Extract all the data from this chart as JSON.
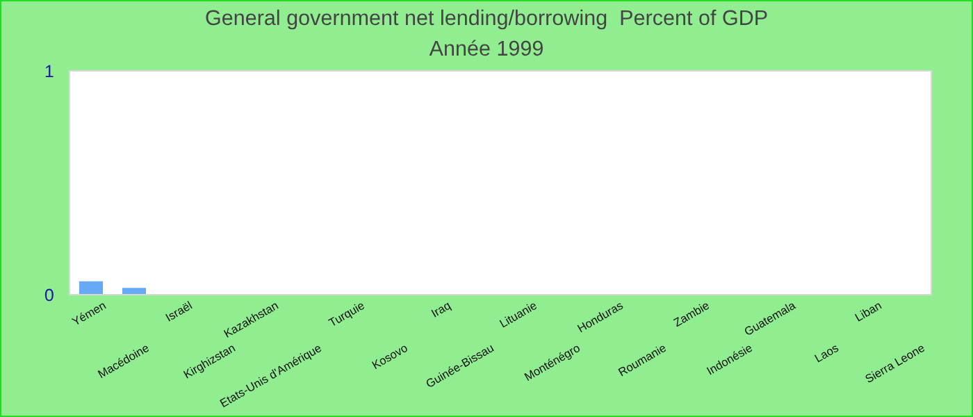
{
  "chart_data": {
    "type": "bar",
    "title": "General government net lending/borrowing  Percent of GDP",
    "subtitle": "Année 1999",
    "categories": [
      "Yémen",
      "Macédoine",
      "Israël",
      "Kirghizstan",
      "Kazakhstan",
      "Etats-Unis d'Amérique",
      "Turquie",
      "Kosovo",
      "Iraq",
      "Guinée-Bissau",
      "Lituanie",
      "Monténégro",
      "Honduras",
      "Roumanie",
      "Zambie",
      "Indonésie",
      "Guatemala",
      "Laos",
      "Liban",
      "Sierra Leone"
    ],
    "values": [
      0.06,
      0.03,
      0,
      0,
      0,
      0,
      0,
      0,
      0,
      0,
      0,
      0,
      0,
      0,
      0,
      0,
      0,
      0,
      0,
      0
    ],
    "color": "#66aaf5",
    "ylim": [
      0,
      1
    ],
    "yticks": [
      0,
      1
    ]
  }
}
